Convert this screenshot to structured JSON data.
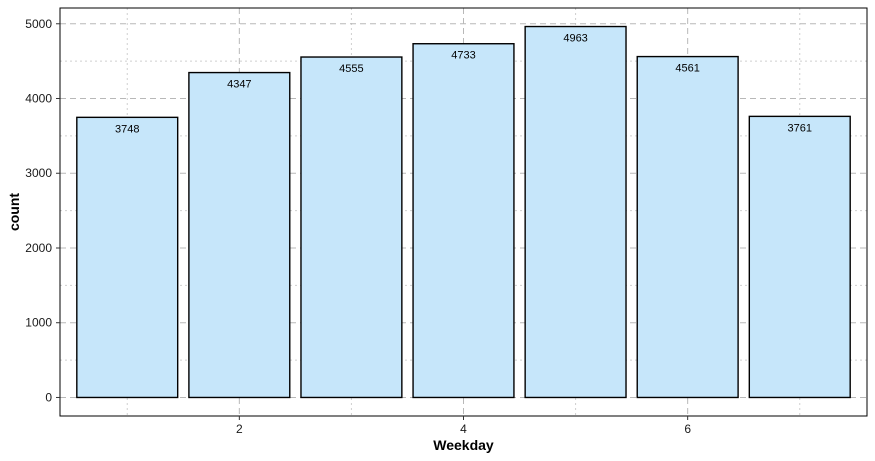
{
  "chart_data": {
    "type": "bar",
    "categories": [
      1,
      2,
      3,
      4,
      5,
      6,
      7
    ],
    "values": [
      3748,
      4347,
      4555,
      4733,
      4963,
      4561,
      3761
    ],
    "data_labels": [
      "3748",
      "4347",
      "4555",
      "4733",
      "4963",
      "4561",
      "3761"
    ],
    "title": "",
    "xlabel": "Weekday",
    "ylabel": "count",
    "x_ticks": [
      2,
      4,
      6
    ],
    "y_ticks": [
      0,
      1000,
      2000,
      3000,
      4000,
      5000
    ],
    "xlim": [
      0.4,
      7.6
    ],
    "ylim": [
      -248,
      5211
    ],
    "grid": true,
    "legend": "none",
    "bar_fill": "#c6e6fa",
    "bar_edge": "#000000"
  }
}
